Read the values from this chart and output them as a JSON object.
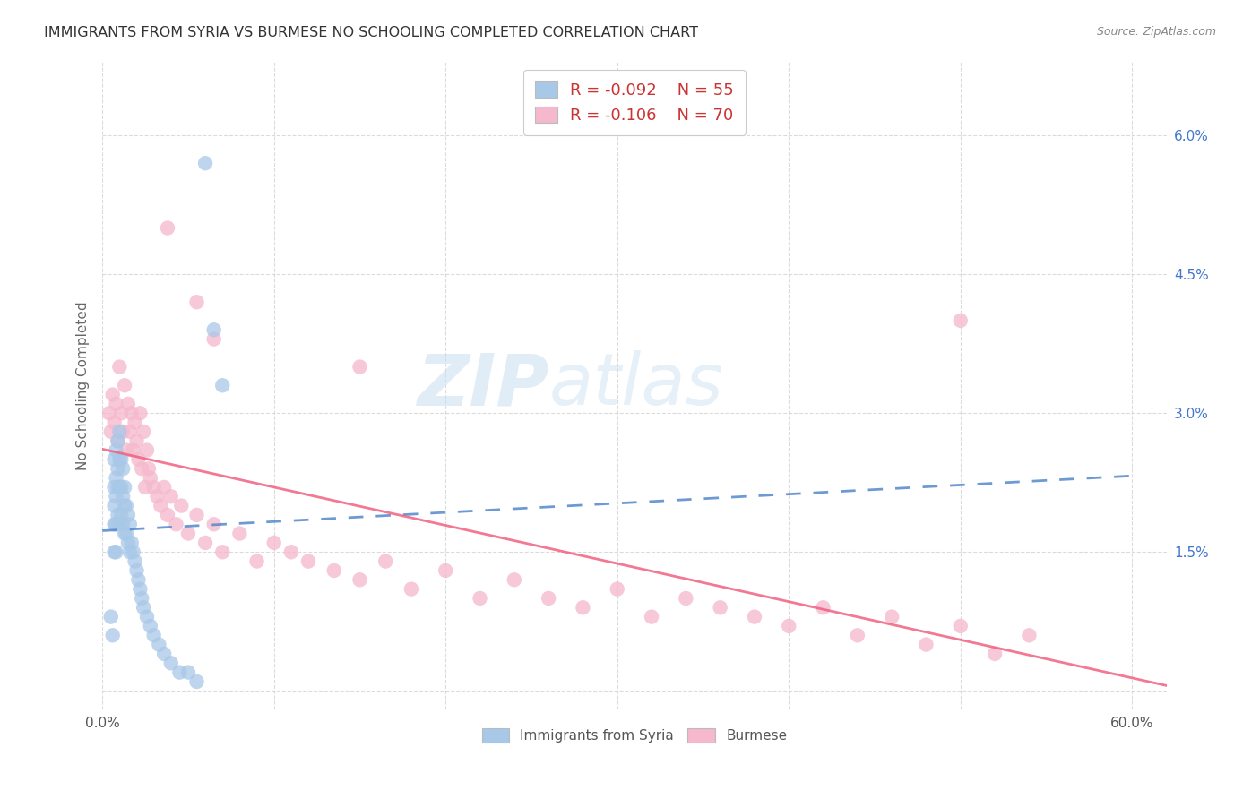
{
  "title": "IMMIGRANTS FROM SYRIA VS BURMESE NO SCHOOLING COMPLETED CORRELATION CHART",
  "source": "Source: ZipAtlas.com",
  "ylabel": "No Schooling Completed",
  "legend_label_1": "Immigrants from Syria",
  "legend_label_2": "Burmese",
  "r1": "-0.092",
  "n1": "55",
  "r2": "-0.106",
  "n2": "70",
  "xlim": [
    0.0,
    0.62
  ],
  "ylim": [
    -0.002,
    0.068
  ],
  "xticks": [
    0.0,
    0.1,
    0.2,
    0.3,
    0.4,
    0.5,
    0.6
  ],
  "yticks": [
    0.0,
    0.015,
    0.03,
    0.045,
    0.06
  ],
  "ytick_labels": [
    "",
    "1.5%",
    "3.0%",
    "4.5%",
    "6.0%"
  ],
  "xtick_labels_show": [
    "0.0%",
    "",
    "",
    "",
    "",
    "",
    "60.0%"
  ],
  "color_syria": "#a8c8e8",
  "color_burmese": "#f5b8cc",
  "trendline_syria_color": "#5588cc",
  "trendline_burmese_color": "#f06080",
  "background_color": "#ffffff",
  "grid_color": "#cccccc",
  "watermark_zip": "ZIP",
  "watermark_atlas": "atlas",
  "syria_x": [
    0.005,
    0.006,
    0.007,
    0.007,
    0.007,
    0.007,
    0.007,
    0.008,
    0.008,
    0.008,
    0.008,
    0.008,
    0.009,
    0.009,
    0.009,
    0.009,
    0.01,
    0.01,
    0.01,
    0.01,
    0.011,
    0.011,
    0.011,
    0.012,
    0.012,
    0.012,
    0.013,
    0.013,
    0.013,
    0.014,
    0.014,
    0.015,
    0.015,
    0.016,
    0.016,
    0.017,
    0.018,
    0.019,
    0.02,
    0.021,
    0.022,
    0.023,
    0.024,
    0.026,
    0.028,
    0.03,
    0.033,
    0.036,
    0.04,
    0.045,
    0.05,
    0.055,
    0.06,
    0.065,
    0.07
  ],
  "syria_y": [
    0.008,
    0.006,
    0.025,
    0.022,
    0.02,
    0.018,
    0.015,
    0.026,
    0.023,
    0.021,
    0.018,
    0.015,
    0.027,
    0.024,
    0.022,
    0.019,
    0.028,
    0.025,
    0.022,
    0.018,
    0.025,
    0.022,
    0.019,
    0.024,
    0.021,
    0.018,
    0.022,
    0.02,
    0.017,
    0.02,
    0.017,
    0.019,
    0.016,
    0.018,
    0.015,
    0.016,
    0.015,
    0.014,
    0.013,
    0.012,
    0.011,
    0.01,
    0.009,
    0.008,
    0.007,
    0.006,
    0.005,
    0.004,
    0.003,
    0.002,
    0.002,
    0.001,
    0.057,
    0.039,
    0.033
  ],
  "burmese_x": [
    0.004,
    0.005,
    0.006,
    0.007,
    0.008,
    0.009,
    0.01,
    0.011,
    0.012,
    0.013,
    0.014,
    0.015,
    0.016,
    0.017,
    0.018,
    0.019,
    0.02,
    0.021,
    0.022,
    0.023,
    0.024,
    0.025,
    0.026,
    0.027,
    0.028,
    0.03,
    0.032,
    0.034,
    0.036,
    0.038,
    0.04,
    0.043,
    0.046,
    0.05,
    0.055,
    0.06,
    0.065,
    0.07,
    0.08,
    0.09,
    0.1,
    0.11,
    0.12,
    0.135,
    0.15,
    0.165,
    0.18,
    0.2,
    0.22,
    0.24,
    0.26,
    0.28,
    0.3,
    0.32,
    0.34,
    0.36,
    0.38,
    0.4,
    0.42,
    0.44,
    0.46,
    0.48,
    0.5,
    0.52,
    0.54,
    0.038,
    0.055,
    0.065,
    0.15,
    0.5
  ],
  "burmese_y": [
    0.03,
    0.028,
    0.032,
    0.029,
    0.031,
    0.027,
    0.035,
    0.03,
    0.028,
    0.033,
    0.026,
    0.031,
    0.028,
    0.03,
    0.026,
    0.029,
    0.027,
    0.025,
    0.03,
    0.024,
    0.028,
    0.022,
    0.026,
    0.024,
    0.023,
    0.022,
    0.021,
    0.02,
    0.022,
    0.019,
    0.021,
    0.018,
    0.02,
    0.017,
    0.019,
    0.016,
    0.018,
    0.015,
    0.017,
    0.014,
    0.016,
    0.015,
    0.014,
    0.013,
    0.012,
    0.014,
    0.011,
    0.013,
    0.01,
    0.012,
    0.01,
    0.009,
    0.011,
    0.008,
    0.01,
    0.009,
    0.008,
    0.007,
    0.009,
    0.006,
    0.008,
    0.005,
    0.007,
    0.004,
    0.006,
    0.05,
    0.042,
    0.038,
    0.035,
    0.04
  ]
}
